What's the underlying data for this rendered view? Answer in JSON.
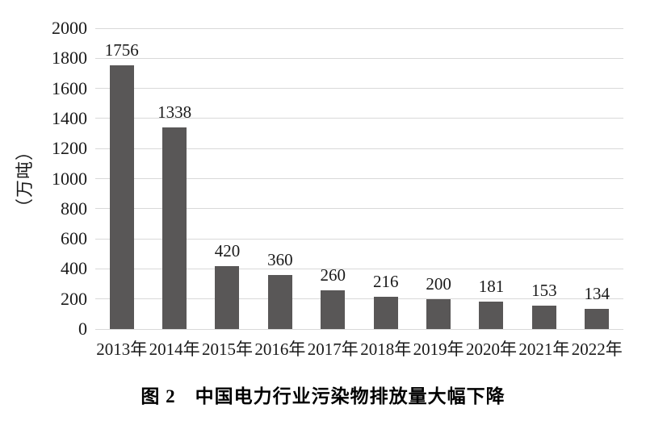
{
  "chart_data": {
    "type": "bar",
    "title": "图 2　中国电力行业污染物排放量大幅下降",
    "ylabel": "（万吨）",
    "xlabel": "",
    "categories": [
      "2013年",
      "2014年",
      "2015年",
      "2016年",
      "2017年",
      "2018年",
      "2019年",
      "2020年",
      "2021年",
      "2022年"
    ],
    "values": [
      1756,
      1338,
      420,
      360,
      260,
      216,
      200,
      181,
      153,
      134
    ],
    "ylim": [
      0,
      2000
    ],
    "y_ticks": [
      0,
      200,
      400,
      600,
      800,
      1000,
      1200,
      1400,
      1600,
      1800,
      2000
    ],
    "grid": "horizontal",
    "legend_position": "none",
    "value_labels_shown": true,
    "colors": {
      "bar": "#595757",
      "gridline": "#d9d9d9",
      "text": "#1a1a1a",
      "background": "#ffffff"
    }
  }
}
